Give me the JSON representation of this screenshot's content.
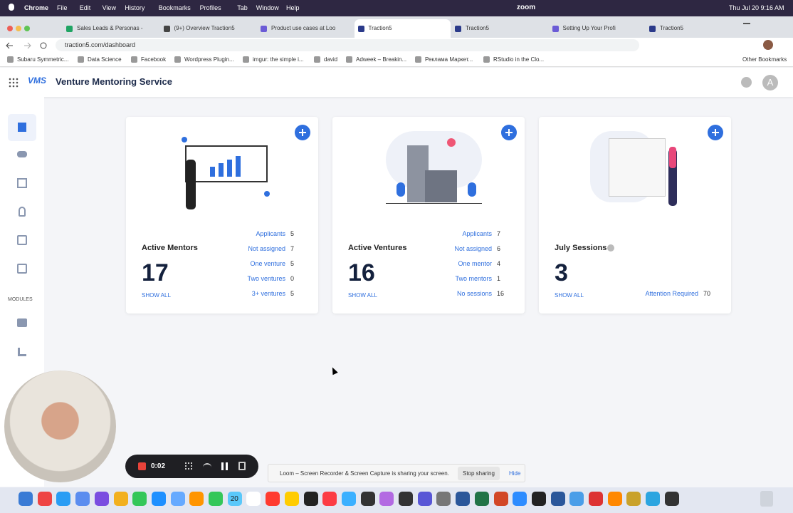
{
  "menubar": {
    "app": "Chrome",
    "menus": [
      "File",
      "Edit",
      "View",
      "History",
      "Bookmarks",
      "Profiles",
      "Tab",
      "Window",
      "Help"
    ],
    "zoom": "zoom",
    "clock": "Thu Jul 20  9:16 AM"
  },
  "tabs": [
    "Sales Leads & Personas -",
    "(9+) Overview Traction5",
    "Product use cases at Loo",
    "Traction5",
    "Traction5",
    "Setting Up Your Profi",
    "Traction5"
  ],
  "address": "traction5.com/dashboard",
  "bookmarks": [
    "Subaru Symmetric...",
    "Data Science",
    "Facebook",
    "Wordpress Plugin...",
    "imgur: the simple i...",
    "david",
    "Adweek – Breakin...",
    "Реклама Маркет...",
    "RStudio in the Clo..."
  ],
  "other_bookmarks": "Other Bookmarks",
  "app": {
    "logo": "VMS",
    "title": "Venture Mentoring Service",
    "avatar": "A"
  },
  "sidebar": {
    "modules_label": "MODULES"
  },
  "cards": [
    {
      "title": "Active Mentors",
      "count": 17,
      "show_all": "SHOW ALL",
      "stats": [
        {
          "label": "Applicants",
          "value": 5
        },
        {
          "label": "Not assigned",
          "value": 7
        },
        {
          "label": "One venture",
          "value": 5
        },
        {
          "label": "Two ventures",
          "value": 0
        },
        {
          "label": "3+ ventures",
          "value": 5
        }
      ]
    },
    {
      "title": "Active Ventures",
      "count": 16,
      "show_all": "SHOW ALL",
      "stats": [
        {
          "label": "Applicants",
          "value": 7
        },
        {
          "label": "Not assigned",
          "value": 6
        },
        {
          "label": "One mentor",
          "value": 4
        },
        {
          "label": "Two mentors",
          "value": 1
        },
        {
          "label": "No sessions",
          "value": 16
        }
      ]
    },
    {
      "title": "July Sessions",
      "count": 3,
      "show_all": "SHOW ALL",
      "stats": [
        {
          "label": "Attention Required",
          "value": 70
        }
      ]
    }
  ],
  "loom": {
    "timer": "0:02",
    "message": "Loom – Screen Recorder & Screen Capture is sharing your screen.",
    "stop": "Stop sharing",
    "hide": "Hide"
  },
  "dock": {
    "calendar_day": "20"
  }
}
